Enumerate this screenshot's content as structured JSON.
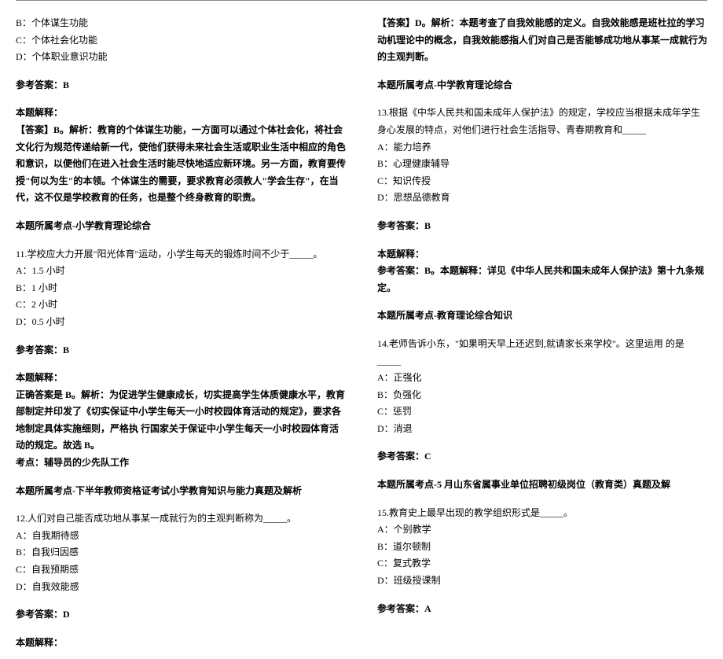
{
  "left": {
    "q_opts_top": {
      "b": "B：个体谋生功能",
      "c": "C：个体社会化功能",
      "d": "D：个体职业意识功能"
    },
    "ans_b_label": "参考答案：B",
    "explain_label": "本题解释：",
    "explain_b": "【答案】B。解析：教育的个体谋生功能，一方面可以通过个体社会化，将社会文化行为规范传递给新一代，使他们获得未来社会生活或职业生活中相应的角色和意识，以便他们在进入社会生活时能尽快地适应新环境。另一方面，教育要传授\"何以为生\"的本领。个体谋生的需要，要求教育必须教人\"学会生存\"，在当代，这不仅是学校教育的任务，也是整个终身教育的职责。",
    "topic_b": "本题所属考点-小学教育理论综合",
    "q11": {
      "stem": "11.学校应大力开展\"阳光体育\"运动，小学生每天的锻炼时间不少于_____。",
      "a": "A：1.5 小时",
      "b": "B：1 小时",
      "c": "C：2 小时",
      "d": "D：0.5 小时",
      "ans": "参考答案：B",
      "explain_label": "本题解释：",
      "explain": "正确答案是 B。解析：为促进学生健康成长，切实提高学生体质健康水平，教育部制定并印发了《切实保证中小学生每天一小时校园体育活动的规定》，要求各地制定具体实施细则，严格执 行国家关于保证中小学生每天一小时校园体育活动的规定。故选 B。",
      "point": "考点：辅导员的少先队工作",
      "topic": "本题所属考点-下半年教师资格证考试小学教育知识与能力真题及解析"
    },
    "q12": {
      "stem": "12.人们对自己能否成功地从事某一成就行为的主观判断称为_____。",
      "a": "A：自我期待感",
      "b": "B：自我归因感",
      "c": "C：自我预期感",
      "d": "D：自我效能感",
      "ans": "参考答案：D",
      "explain_label": "本题解释："
    }
  },
  "right": {
    "q12_explain": "【答案】D。解析：本题考查了自我效能感的定义。自我效能感是班杜拉的学习动机理论中的概念，自我效能感指人们对自己是否能够成功地从事某一成就行为的主观判断。",
    "q12_topic": "本题所属考点-中学教育理论综合",
    "q13": {
      "stem": "13.根据《中华人民共和国未成年人保护法》的规定，学校应当根据未成年学生身心发展的特点，对他们进行社会生活指导、青春期教育和_____",
      "a": "A：能力培养",
      "b": "B：心理健康辅导",
      "c": "C：知识传授",
      "d": "D：思想品德教育",
      "ans": "参考答案：B",
      "explain_label": "本题解释：",
      "explain": "参考答案：B。本题解释：详见《中华人民共和国未成年人保护法》第十九条规定。",
      "topic": "本题所属考点-教育理论综合知识"
    },
    "q14": {
      "stem": "14.老师告诉小东，\"如果明天早上还迟到,就请家长来学校\"。这里运用 的是_____",
      "a": "A：正强化",
      "b": "B：负强化",
      "c": "C：惩罚",
      "d": "D：消退",
      "ans": "参考答案：C",
      "topic": "本题所属考点-5 月山东省属事业单位招聘初级岗位（教育类）真题及解"
    },
    "q15": {
      "stem": "15.教育史上最早出现的教学组织形式是_____。",
      "a": "A：个别教学",
      "b": "B：道尔顿制",
      "c": "C：复式教学",
      "d": "D：班级授课制",
      "ans": "参考答案：A"
    }
  }
}
